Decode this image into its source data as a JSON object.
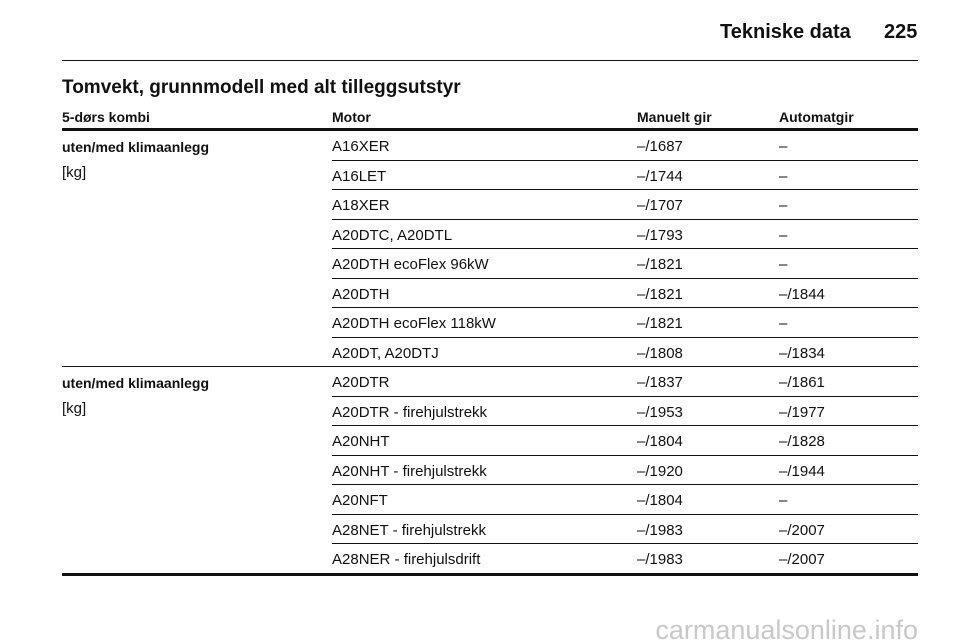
{
  "header": {
    "title": "Tekniske data",
    "page": "225"
  },
  "section_title": "Tomvekt, grunnmodell med alt tilleggsutstyr",
  "table": {
    "columns": [
      "5-dørs kombi",
      "Motor",
      "Manuelt gir",
      "Automatgir"
    ],
    "groups": [
      {
        "label": "uten/med klimaanlegg",
        "unit": "[kg]",
        "rows": [
          [
            "A16XER",
            "–/1687",
            "–"
          ],
          [
            "A16LET",
            "–/1744",
            "–"
          ],
          [
            "A18XER",
            "–/1707",
            "–"
          ],
          [
            "A20DTC, A20DTL",
            "–/1793",
            "–"
          ],
          [
            "A20DTH ecoFlex 96kW",
            "–/1821",
            "–"
          ],
          [
            "A20DTH",
            "–/1821",
            "–/1844"
          ],
          [
            "A20DTH ecoFlex 118kW",
            "–/1821",
            "–"
          ],
          [
            "A20DT, A20DTJ",
            "–/1808",
            "–/1834"
          ]
        ]
      },
      {
        "label": "uten/med klimaanlegg",
        "unit": "[kg]",
        "rows": [
          [
            "A20DTR",
            "–/1837",
            "–/1861"
          ],
          [
            "A20DTR - firehjulstrekk",
            "–/1953",
            "–/1977"
          ],
          [
            "A20NHT",
            "–/1804",
            "–/1828"
          ],
          [
            "A20NHT - firehjulstrekk",
            "–/1920",
            "–/1944"
          ],
          [
            "A20NFT",
            "–/1804",
            "–"
          ],
          [
            "A28NET - firehjulstrekk",
            "–/1983",
            "–/2007"
          ],
          [
            "A28NER - firehjulsdrift",
            "–/1983",
            "–/2007"
          ]
        ]
      }
    ]
  },
  "watermark": "carmanualsonline.info"
}
